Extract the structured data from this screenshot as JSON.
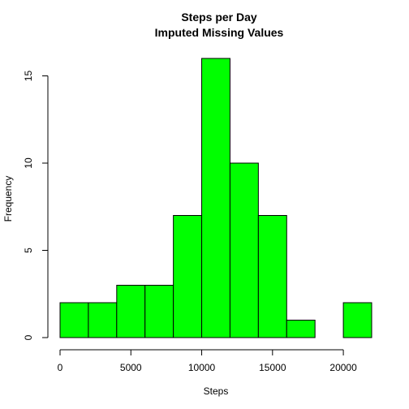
{
  "chart_data": {
    "type": "bar",
    "title": "Steps per Day",
    "subtitle": "Imputed Missing Values",
    "xlabel": "Steps",
    "ylabel": "Frequency",
    "bin_edges": [
      0,
      2000,
      4000,
      6000,
      8000,
      10000,
      12000,
      14000,
      16000,
      18000,
      20000,
      22000
    ],
    "values": [
      2,
      2,
      3,
      3,
      7,
      16,
      10,
      7,
      1,
      0,
      2
    ],
    "xlim": [
      0,
      22000
    ],
    "ylim": [
      0,
      16
    ],
    "x_ticks": [
      0,
      5000,
      10000,
      15000,
      20000
    ],
    "x_tick_labels": [
      "0",
      "5000",
      "10000",
      "15000",
      "20000"
    ],
    "y_ticks": [
      0,
      5,
      10,
      15
    ],
    "y_tick_labels": [
      "0",
      "5",
      "10",
      "15"
    ],
    "bar_color": "#00ff00",
    "grid": false
  }
}
